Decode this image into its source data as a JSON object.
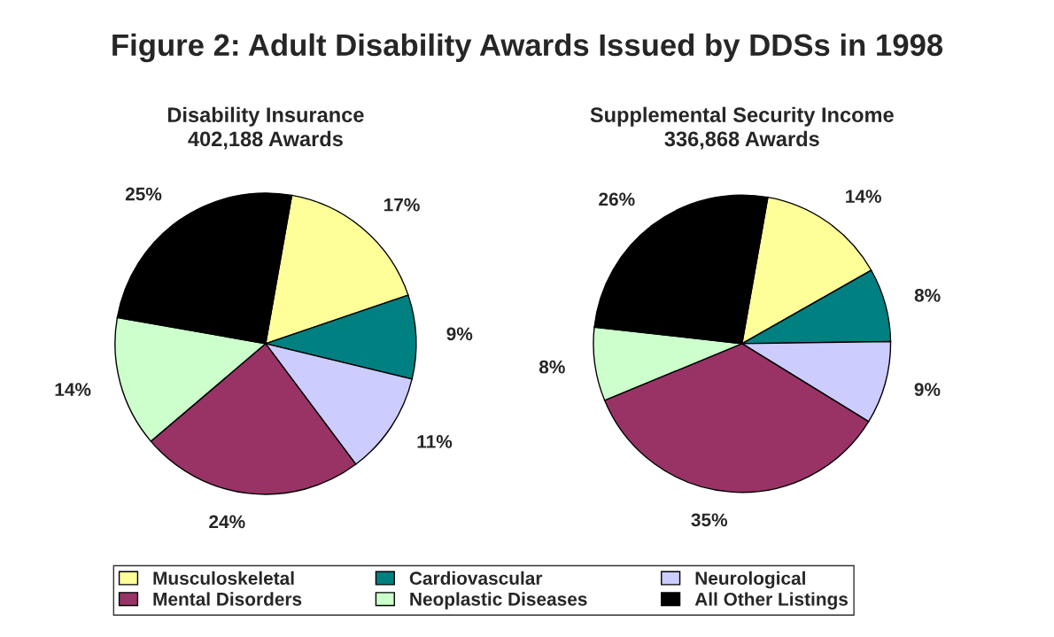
{
  "chart_data": [
    {
      "type": "pie",
      "title": "Figure 2: Adult Disability Awards Issued by DDSs in 1998",
      "subtitle": "Disability Insurance\n402,188 Awards",
      "categories": [
        "Musculoskeletal",
        "Cardiovascular",
        "Neurological",
        "Mental Disorders",
        "Neoplastic Diseases",
        "All Other Listings"
      ],
      "values": [
        17,
        9,
        11,
        24,
        14,
        25
      ],
      "value_labels": [
        "17%",
        "9%",
        "11%",
        "24%",
        "14%",
        "25%"
      ],
      "colors": [
        "#ffff99",
        "#008080",
        "#ccccff",
        "#993366",
        "#ccffcc",
        "#000000"
      ],
      "legend": "bottom"
    },
    {
      "type": "pie",
      "subtitle": "Supplemental Security Income\n336,868 Awards",
      "categories": [
        null,
        null,
        null,
        null,
        null,
        null
      ],
      "values": [
        14,
        8,
        9,
        35,
        8,
        26
      ],
      "value_labels": [
        "14%",
        "8%",
        "9%",
        "35%",
        "8%",
        "26%"
      ],
      "colors": [
        "#ffff99",
        "#008080",
        "#ccccff",
        "#993366",
        "#ccffcc",
        "#000000"
      ]
    }
  ]
}
